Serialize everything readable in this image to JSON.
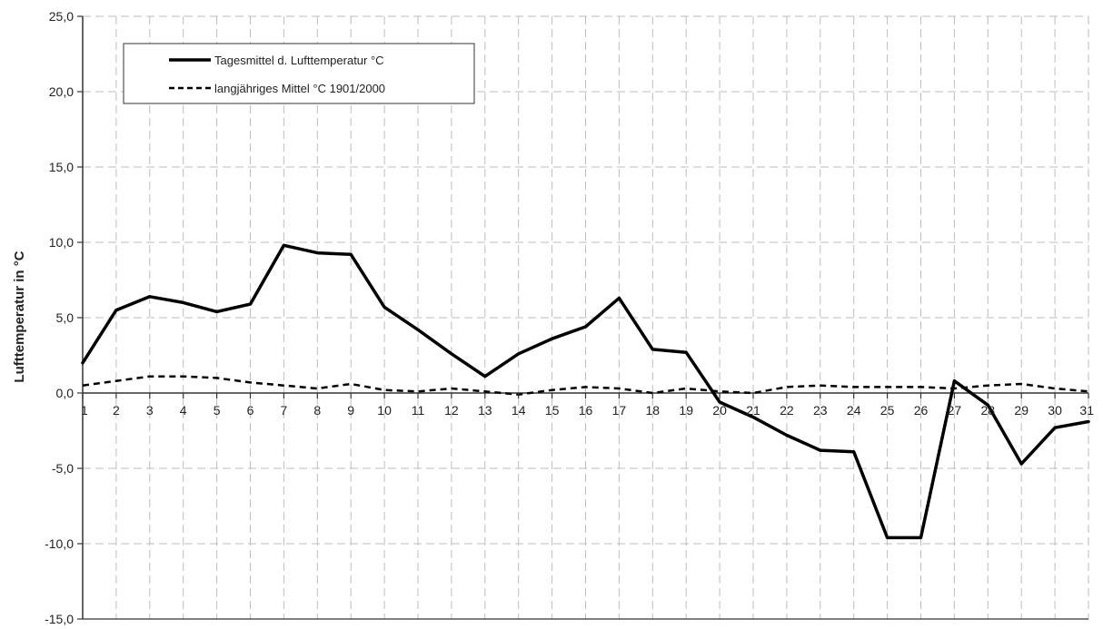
{
  "chart_data": {
    "type": "line",
    "title": "",
    "xlabel": "",
    "ylabel": "Lufttemperatur in °C",
    "x": [
      1,
      2,
      3,
      4,
      5,
      6,
      7,
      8,
      9,
      10,
      11,
      12,
      13,
      14,
      15,
      16,
      17,
      18,
      19,
      20,
      21,
      22,
      23,
      24,
      25,
      26,
      27,
      28,
      29,
      30,
      31
    ],
    "x_tick_labels": [
      "1",
      "2",
      "3",
      "4",
      "5",
      "6",
      "7",
      "8",
      "9",
      "10",
      "11",
      "12",
      "13",
      "14",
      "15",
      "16",
      "17",
      "18",
      "19",
      "20",
      "21",
      "22",
      "23",
      "24",
      "25",
      "26",
      "27",
      "28",
      "29",
      "30",
      "31"
    ],
    "ylim": [
      -15,
      25
    ],
    "y_ticks": [
      25,
      20,
      15,
      10,
      5,
      0,
      -5,
      -10,
      -15
    ],
    "y_tick_labels": [
      "25,0",
      "20,0",
      "15,0",
      "10,0",
      "5,0",
      "0,0",
      "-5,0",
      "-10,0",
      "-15,0"
    ],
    "grid": true,
    "legend_position": "top-left",
    "series": [
      {
        "name": "Tagesmittel d. Lufttemperatur °C",
        "style": "solid",
        "color": "#000000",
        "values": [
          2.0,
          5.5,
          6.4,
          6.0,
          5.4,
          5.9,
          9.8,
          9.3,
          9.2,
          5.7,
          4.2,
          2.6,
          1.1,
          2.6,
          3.6,
          4.4,
          6.3,
          2.9,
          2.7,
          -0.6,
          -1.6,
          -2.8,
          -3.8,
          -3.9,
          -9.6,
          -9.6,
          0.8,
          -0.8,
          -4.7,
          -2.3,
          -1.9
        ]
      },
      {
        "name": "langjähriges Mittel °C 1901/2000",
        "style": "dashed",
        "color": "#000000",
        "values": [
          0.5,
          0.8,
          1.1,
          1.1,
          1.0,
          0.7,
          0.5,
          0.3,
          0.6,
          0.2,
          0.1,
          0.3,
          0.1,
          -0.1,
          0.2,
          0.4,
          0.3,
          0.0,
          0.3,
          0.1,
          0.0,
          0.4,
          0.5,
          0.4,
          0.4,
          0.4,
          0.3,
          0.5,
          0.6,
          0.3,
          0.1
        ]
      }
    ]
  }
}
